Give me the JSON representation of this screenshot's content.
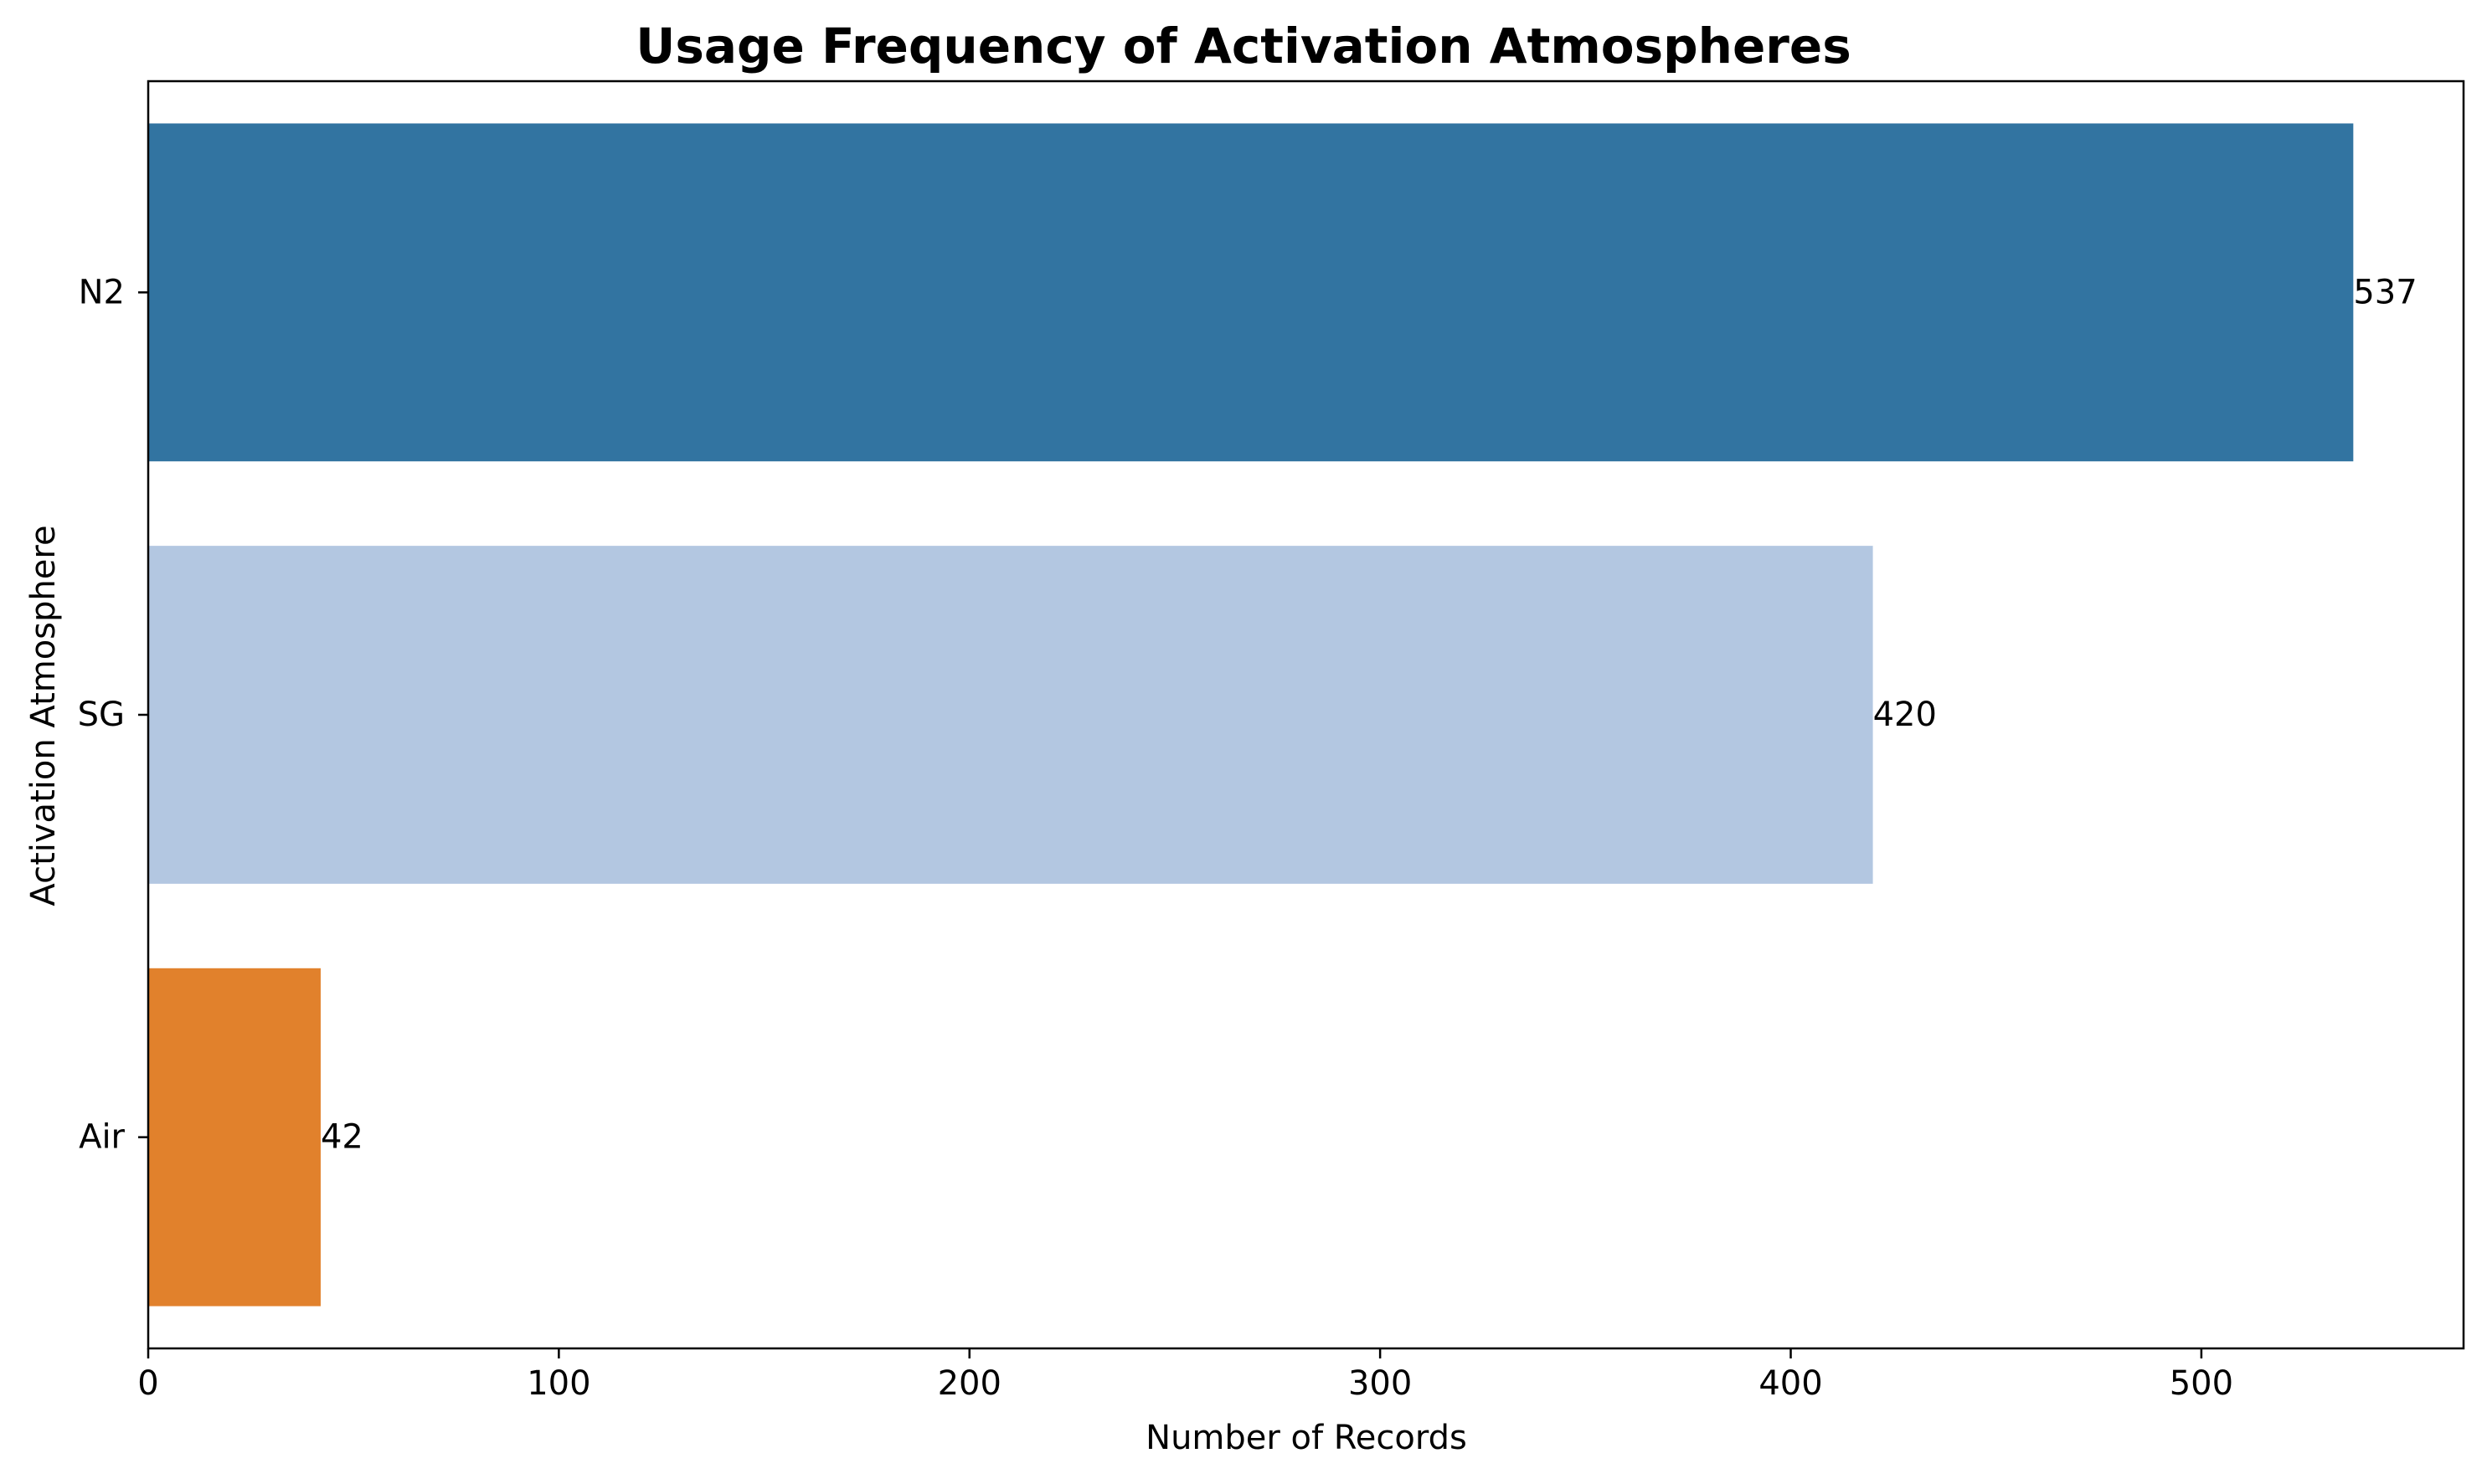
{
  "chart_data": {
    "type": "bar",
    "orientation": "horizontal",
    "title": "Usage Frequency of Activation Atmospheres",
    "xlabel": "Number of Records",
    "ylabel": "Activation Atmosphere",
    "categories": [
      "N2",
      "SG",
      "Air"
    ],
    "values": [
      537,
      420,
      42
    ],
    "value_labels": [
      "537",
      "420",
      "42"
    ],
    "colors": [
      "#3274a1",
      "#b3c7e1",
      "#e1812c"
    ],
    "xlim": [
      0,
      563.85
    ],
    "xticks": [
      0,
      100,
      200,
      300,
      400,
      500
    ],
    "xtick_labels": [
      "0",
      "100",
      "200",
      "300",
      "400",
      "500"
    ],
    "grid": false,
    "legend": "none"
  }
}
